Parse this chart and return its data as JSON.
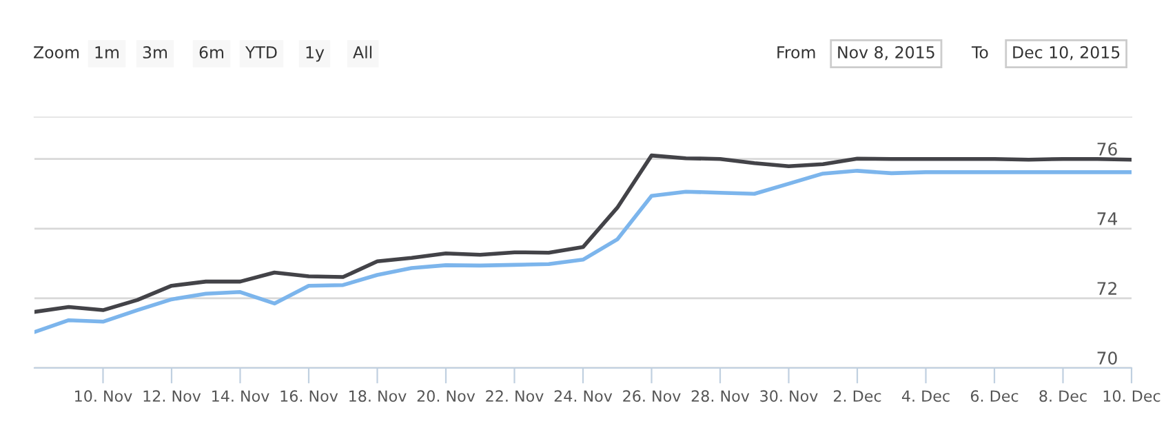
{
  "chart_data": {
    "type": "line",
    "x": [
      "2015-11-08",
      "2015-11-09",
      "2015-11-10",
      "2015-11-11",
      "2015-11-12",
      "2015-11-13",
      "2015-11-14",
      "2015-11-15",
      "2015-11-16",
      "2015-11-17",
      "2015-11-18",
      "2015-11-19",
      "2015-11-20",
      "2015-11-21",
      "2015-11-22",
      "2015-11-23",
      "2015-11-24",
      "2015-11-25",
      "2015-11-26",
      "2015-11-27",
      "2015-11-28",
      "2015-11-29",
      "2015-11-30",
      "2015-12-01",
      "2015-12-02",
      "2015-12-03",
      "2015-12-04",
      "2015-12-05",
      "2015-12-06",
      "2015-12-07",
      "2015-12-08",
      "2015-12-09",
      "2015-12-10"
    ],
    "series": [
      {
        "color": "#434348",
        "values": [
          71.61,
          71.75,
          71.66,
          71.95,
          72.36,
          72.48,
          72.48,
          72.74,
          72.63,
          72.61,
          73.06,
          73.16,
          73.29,
          73.25,
          73.32,
          73.31,
          73.47,
          74.6,
          76.1,
          76.02,
          76.0,
          75.88,
          75.79,
          75.85,
          76.01,
          76.0,
          76.0,
          76.0,
          76.0,
          75.98,
          76.0,
          76.0,
          75.98
        ]
      },
      {
        "color": "#7cb5ec",
        "values": [
          71.03,
          71.37,
          71.33,
          71.66,
          71.97,
          72.13,
          72.18,
          71.85,
          72.36,
          72.38,
          72.67,
          72.87,
          72.95,
          72.94,
          72.96,
          72.98,
          73.11,
          73.69,
          74.94,
          75.06,
          75.03,
          75.0,
          75.29,
          75.58,
          75.66,
          75.59,
          75.62,
          75.62,
          75.62,
          75.62,
          75.62,
          75.62,
          75.62
        ]
      }
    ],
    "xlim": [
      "2015-11-08",
      "2015-12-10"
    ],
    "xticks": [
      {
        "value": "2015-11-10",
        "label": "10. Nov"
      },
      {
        "value": "2015-11-12",
        "label": "12. Nov"
      },
      {
        "value": "2015-11-14",
        "label": "14. Nov"
      },
      {
        "value": "2015-11-16",
        "label": "16. Nov"
      },
      {
        "value": "2015-11-18",
        "label": "18. Nov"
      },
      {
        "value": "2015-11-20",
        "label": "20. Nov"
      },
      {
        "value": "2015-11-22",
        "label": "22. Nov"
      },
      {
        "value": "2015-11-24",
        "label": "24. Nov"
      },
      {
        "value": "2015-11-26",
        "label": "26. Nov"
      },
      {
        "value": "2015-11-28",
        "label": "28. Nov"
      },
      {
        "value": "2015-11-30",
        "label": "30. Nov"
      },
      {
        "value": "2015-12-02",
        "label": "2. Dec"
      },
      {
        "value": "2015-12-04",
        "label": "4. Dec"
      },
      {
        "value": "2015-12-06",
        "label": "6. Dec"
      },
      {
        "value": "2015-12-08",
        "label": "8. Dec"
      },
      {
        "value": "2015-12-10",
        "label": "10. Dec"
      }
    ],
    "ylim": [
      70,
      77.2
    ],
    "yticks": [
      70,
      72,
      74,
      76
    ],
    "grid": "y",
    "legend": false,
    "marker": "none",
    "line_style": "solid",
    "annotations": [
      "Zoom",
      "1m",
      "3m",
      "6m",
      "YTD",
      "1y",
      "All",
      "From",
      "Nov 8, 2015",
      "To",
      "Dec 10, 2015"
    ]
  }
}
